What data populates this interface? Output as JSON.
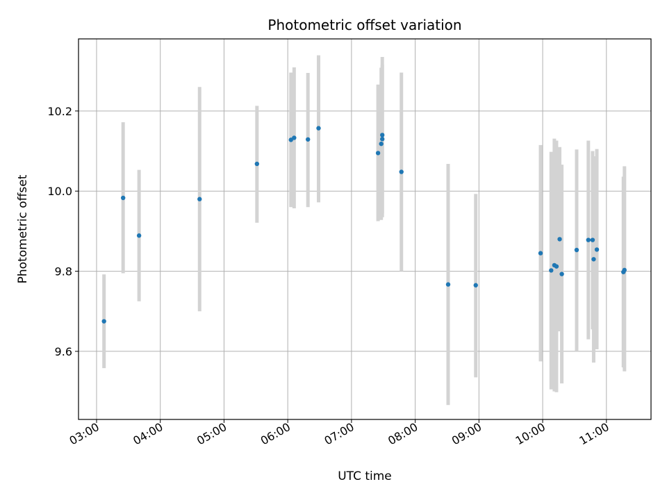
{
  "chart_data": {
    "type": "scatter",
    "title": "Photometric offset variation",
    "xlabel": "UTC time",
    "ylabel": "Photometric offset",
    "x_ticks": [
      "03:00",
      "04:00",
      "05:00",
      "06:00",
      "07:00",
      "08:00",
      "09:00",
      "10:00",
      "11:00"
    ],
    "y_ticks": [
      "9.6",
      "9.8",
      "10.0",
      "10.2"
    ],
    "y_tick_values": [
      9.6,
      9.8,
      10.0,
      10.2
    ],
    "xlim": [
      "02:43",
      "11:42"
    ],
    "ylim": [
      9.43,
      10.38
    ],
    "grid": true,
    "marker_color": "#1f77b4",
    "errorbar_color": "#d3d3d3",
    "points": [
      {
        "x": "03:07",
        "y": 9.675,
        "err_low": 9.558,
        "err_high": 9.792
      },
      {
        "x": "03:25",
        "y": 9.983,
        "err_low": 9.795,
        "err_high": 10.172
      },
      {
        "x": "03:40",
        "y": 9.889,
        "err_low": 9.725,
        "err_high": 10.053
      },
      {
        "x": "04:37",
        "y": 9.98,
        "err_low": 9.7,
        "err_high": 10.26
      },
      {
        "x": "05:31",
        "y": 10.068,
        "err_low": 9.921,
        "err_high": 10.213
      },
      {
        "x": "06:03",
        "y": 10.128,
        "err_low": 9.96,
        "err_high": 10.296
      },
      {
        "x": "06:06",
        "y": 10.133,
        "err_low": 9.957,
        "err_high": 10.309
      },
      {
        "x": "06:19",
        "y": 10.129,
        "err_low": 9.96,
        "err_high": 10.295
      },
      {
        "x": "06:29",
        "y": 10.157,
        "err_low": 9.972,
        "err_high": 10.339
      },
      {
        "x": "07:25",
        "y": 10.095,
        "err_low": 9.925,
        "err_high": 10.266
      },
      {
        "x": "07:28",
        "y": 10.118,
        "err_low": 9.928,
        "err_high": 10.308
      },
      {
        "x": "07:29",
        "y": 10.14,
        "err_low": 9.935,
        "err_high": 10.335
      },
      {
        "x": "07:29",
        "y": 10.13,
        "err_low": 9.945,
        "err_high": 10.315
      },
      {
        "x": "07:47",
        "y": 10.048,
        "err_low": 9.8,
        "err_high": 10.296
      },
      {
        "x": "08:31",
        "y": 9.767,
        "err_low": 9.466,
        "err_high": 10.068
      },
      {
        "x": "08:57",
        "y": 9.765,
        "err_low": 9.535,
        "err_high": 9.993
      },
      {
        "x": "09:58",
        "y": 9.845,
        "err_low": 9.575,
        "err_high": 10.115
      },
      {
        "x": "10:08",
        "y": 9.802,
        "err_low": 9.505,
        "err_high": 10.098
      },
      {
        "x": "10:11",
        "y": 9.815,
        "err_low": 9.5,
        "err_high": 10.131
      },
      {
        "x": "10:13",
        "y": 9.812,
        "err_low": 9.498,
        "err_high": 10.126
      },
      {
        "x": "10:16",
        "y": 9.88,
        "err_low": 9.65,
        "err_high": 10.11
      },
      {
        "x": "10:18",
        "y": 9.793,
        "err_low": 9.52,
        "err_high": 10.066
      },
      {
        "x": "10:32",
        "y": 9.853,
        "err_low": 9.6,
        "err_high": 10.104
      },
      {
        "x": "10:43",
        "y": 9.878,
        "err_low": 9.63,
        "err_high": 10.126
      },
      {
        "x": "10:47",
        "y": 9.878,
        "err_low": 9.655,
        "err_high": 10.1
      },
      {
        "x": "10:48",
        "y": 9.83,
        "err_low": 9.572,
        "err_high": 10.087
      },
      {
        "x": "10:51",
        "y": 9.854,
        "err_low": 9.605,
        "err_high": 10.105
      },
      {
        "x": "11:16",
        "y": 9.798,
        "err_low": 9.56,
        "err_high": 10.036
      },
      {
        "x": "11:17",
        "y": 9.803,
        "err_low": 9.55,
        "err_high": 10.062
      }
    ]
  }
}
